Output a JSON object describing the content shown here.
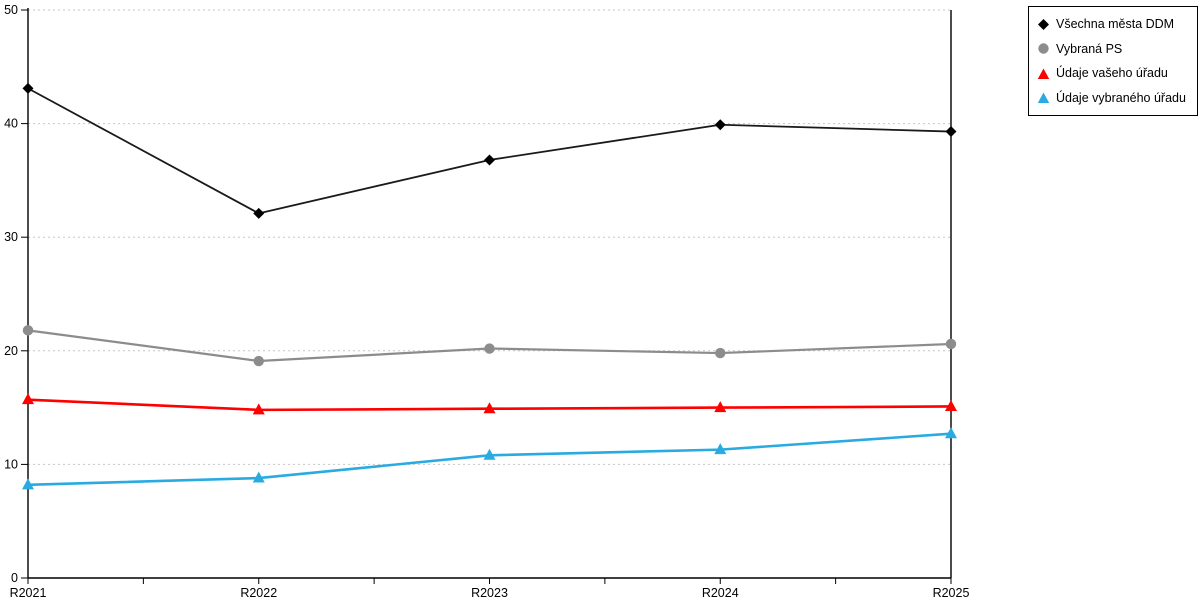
{
  "chart_data": {
    "type": "line",
    "title": "",
    "xlabel": "",
    "ylabel": "",
    "categories": [
      "R2021",
      "R2022",
      "R2023",
      "R2024",
      "R2025"
    ],
    "yticks": [
      0,
      10,
      20,
      30,
      40,
      50
    ],
    "ylim": [
      0,
      50
    ],
    "grid": "horizontal-dotted",
    "legend_position": "outside-top-right",
    "series": [
      {
        "name": "Všechna města DDM",
        "marker": "diamond",
        "color": "#000000",
        "line_color": "#1a1a1a",
        "values": [
          43.1,
          32.1,
          36.8,
          39.9,
          39.3
        ]
      },
      {
        "name": "Vybraná PS",
        "marker": "circle",
        "color": "#8c8c8c",
        "line_color": "#8c8c8c",
        "values": [
          21.8,
          19.1,
          20.2,
          19.8,
          20.6
        ]
      },
      {
        "name": "Údaje vašeho úřadu",
        "marker": "triangle",
        "color": "#ff0000",
        "line_color": "#ff0000",
        "values": [
          15.7,
          14.8,
          14.9,
          15.0,
          15.1
        ]
      },
      {
        "name": "Údaje vybraného úřadu",
        "marker": "triangle",
        "color": "#29abe2",
        "line_color": "#29abe2",
        "values": [
          8.2,
          8.8,
          10.8,
          11.3,
          12.7
        ]
      }
    ],
    "colors": {
      "grid": "#c6c6c6",
      "axis": "#000000",
      "background": "#ffffff",
      "legend_border": "#000000"
    }
  }
}
